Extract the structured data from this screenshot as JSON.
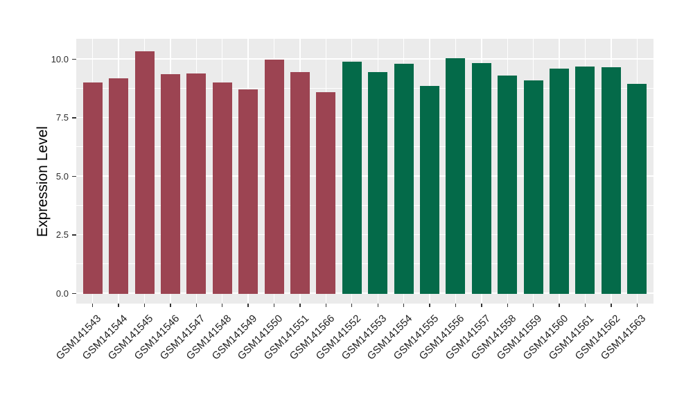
{
  "chart_data": {
    "type": "bar",
    "title": "",
    "xlabel": "",
    "ylabel": "Expression Level",
    "categories": [
      "GSM141543",
      "GSM141544",
      "GSM141545",
      "GSM141546",
      "GSM141547",
      "GSM141548",
      "GSM141549",
      "GSM141550",
      "GSM141551",
      "GSM141566",
      "GSM141552",
      "GSM141553",
      "GSM141554",
      "GSM141555",
      "GSM141556",
      "GSM141557",
      "GSM141558",
      "GSM141559",
      "GSM141560",
      "GSM141561",
      "GSM141562",
      "GSM141563"
    ],
    "values": [
      9.0,
      9.2,
      10.35,
      9.35,
      9.4,
      9.0,
      8.7,
      10.0,
      9.45,
      8.6,
      9.9,
      9.45,
      9.8,
      8.85,
      10.05,
      9.85,
      9.3,
      9.1,
      9.6,
      9.7,
      9.65,
      8.95
    ],
    "bar_groups": [
      "maroon",
      "maroon",
      "maroon",
      "maroon",
      "maroon",
      "maroon",
      "maroon",
      "maroon",
      "maroon",
      "maroon",
      "green",
      "green",
      "green",
      "green",
      "green",
      "green",
      "green",
      "green",
      "green",
      "green",
      "green",
      "green"
    ],
    "group_colors": {
      "maroon": "#9C4452",
      "green": "#046A49"
    },
    "ylim": [
      0,
      10.85
    ],
    "y_major_ticks": [
      0,
      2.5,
      5,
      7.5,
      10
    ],
    "y_tick_labels": [
      "0.0",
      "2.5",
      "5.0",
      "7.5",
      "10.0"
    ],
    "y_minor_ticks": [
      1.25,
      3.75,
      6.25,
      8.75
    ],
    "x_tick_rotation_deg": -45,
    "grid": true,
    "legend_position": "none"
  },
  "style": {
    "panel_background": "#EBEBEB",
    "page_background": "#FFFFFF",
    "grid_color": "#FFFFFF",
    "axis_text_color": "#1F1F1F",
    "axis_title_color": "#000000",
    "tick_mark_color": "#333333"
  }
}
